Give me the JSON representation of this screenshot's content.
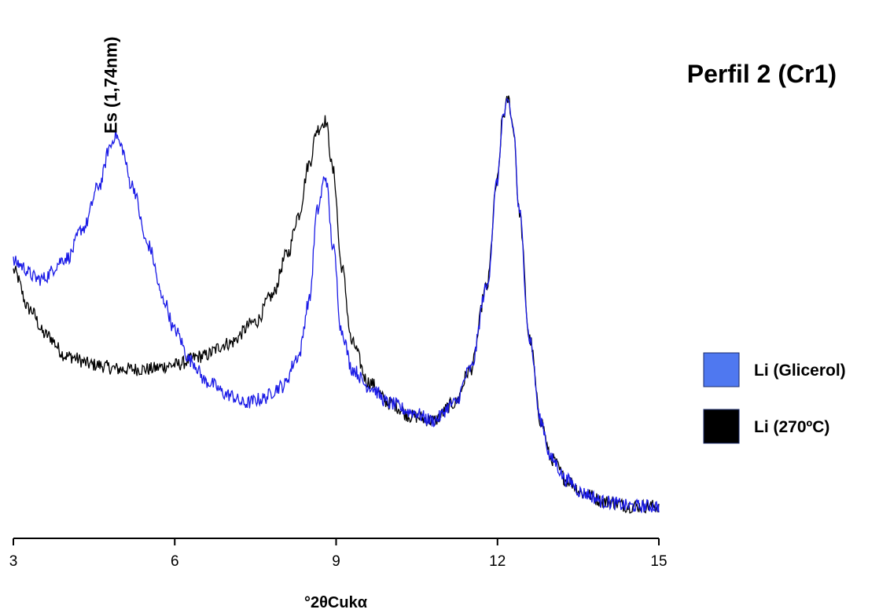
{
  "chart_data": {
    "type": "line",
    "title": "Perfil 2 (Cr1)",
    "xlabel": "°2θCukα",
    "ylabel": "",
    "xlim": [
      3,
      15
    ],
    "ylim": [
      0,
      100
    ],
    "xticks": [
      "3",
      "6",
      "9",
      "12",
      "15"
    ],
    "grid": false,
    "legend_position": "right",
    "annotations": [
      {
        "text": "Es (1,74nm)",
        "x": 4.9
      }
    ],
    "series": [
      {
        "name": "Li (Glicerol)",
        "color": "#1a1ae6",
        "legend_color": "#4f78f0",
        "x": [
          3.0,
          3.5,
          4.0,
          4.3,
          4.6,
          4.8,
          4.9,
          5.0,
          5.2,
          5.5,
          5.8,
          6.0,
          6.3,
          6.6,
          7.0,
          7.3,
          7.6,
          8.0,
          8.3,
          8.5,
          8.65,
          8.8,
          8.95,
          9.1,
          9.3,
          9.6,
          10.0,
          10.4,
          10.8,
          11.2,
          11.5,
          11.8,
          12.0,
          12.1,
          12.2,
          12.3,
          12.4,
          12.6,
          12.8,
          13.0,
          13.3,
          13.6,
          14.0,
          14.5,
          15.0
        ],
        "y": [
          59,
          55,
          60,
          67,
          77,
          86,
          89,
          86,
          77,
          63,
          50,
          43,
          36,
          31,
          28,
          26,
          27,
          30,
          37,
          50,
          71,
          79,
          62,
          43,
          34,
          30,
          26,
          24,
          22,
          26,
          34,
          53,
          78,
          93,
          96,
          90,
          71,
          41,
          22,
          13,
          8,
          5,
          3,
          2,
          2
        ]
      },
      {
        "name": "Li (270ºC)",
        "color": "#000000",
        "legend_color": "#000000",
        "x": [
          3.0,
          3.3,
          3.6,
          4.0,
          4.5,
          5.0,
          5.5,
          6.0,
          6.5,
          7.0,
          7.5,
          7.8,
          8.1,
          8.3,
          8.5,
          8.65,
          8.8,
          8.95,
          9.1,
          9.3,
          9.6,
          10.0,
          10.4,
          10.8,
          11.2,
          11.5,
          11.8,
          12.0,
          12.1,
          12.2,
          12.3,
          12.4,
          12.6,
          12.8,
          13.0,
          13.3,
          13.6,
          14.0,
          14.5,
          15.0
        ],
        "y": [
          57,
          48,
          42,
          37,
          35,
          34,
          34,
          35,
          37,
          40,
          45,
          51,
          61,
          70,
          82,
          90,
          92,
          80,
          58,
          40,
          31,
          26,
          23,
          22,
          26,
          34,
          53,
          78,
          93,
          97,
          90,
          71,
          41,
          22,
          13,
          8,
          5,
          3,
          2,
          2
        ]
      }
    ]
  }
}
